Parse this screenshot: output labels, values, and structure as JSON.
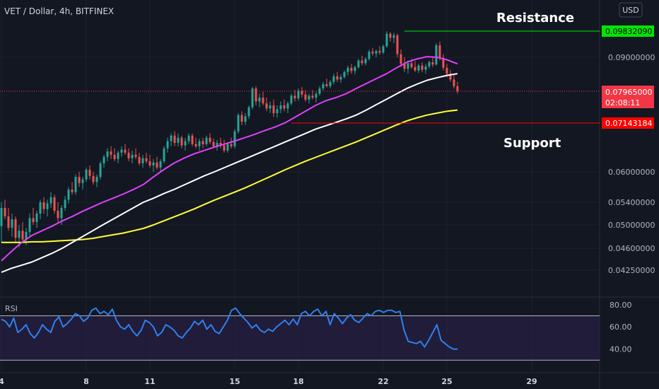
{
  "header": {
    "title": "VET / Dollar, 4h, BITFINEX",
    "currency_button": "USD"
  },
  "annotations": {
    "resistance": "Resistance",
    "support": "Support"
  },
  "badges": {
    "resistance": {
      "value": "0.09832090",
      "color": "#00e600",
      "text_color": "#000000"
    },
    "current": {
      "value": "0.07965000",
      "countdown": "02:08:11",
      "color": "#f23645",
      "text_color": "#ffffff"
    },
    "support": {
      "value": "0.07143184",
      "color": "#ff0000",
      "text_color": "#ffffff"
    }
  },
  "price_axis": {
    "ticks": [
      {
        "label": "0.09000000",
        "value": 0.09
      },
      {
        "label": "0.06000000",
        "value": 0.06
      },
      {
        "label": "0.05400000",
        "value": 0.054
      },
      {
        "label": "0.05000000",
        "value": 0.05
      },
      {
        "label": "0.04600000",
        "value": 0.046
      },
      {
        "label": "0.04250000",
        "value": 0.0425
      }
    ]
  },
  "time_axis": {
    "labels": [
      {
        "label": "4",
        "index": 0
      },
      {
        "label": "8",
        "index": 24
      },
      {
        "label": "11",
        "index": 42
      },
      {
        "label": "15",
        "index": 66
      },
      {
        "label": "18",
        "index": 84
      },
      {
        "label": "22",
        "index": 108
      },
      {
        "label": "25",
        "index": 126
      },
      {
        "label": "29",
        "index": 150
      }
    ]
  },
  "rsi": {
    "label": "RSI",
    "ticks": [
      {
        "label": "80.00",
        "value": 80
      },
      {
        "label": "60.00",
        "value": 60
      },
      {
        "label": "40.00",
        "value": 40
      }
    ],
    "upper_band": 70,
    "lower_band": 30,
    "line_color": "#2f80ed",
    "fill_color": "#2a1f4a"
  },
  "colors": {
    "up": "#26a69a",
    "down": "#ef5350",
    "ema_fast": "#e040fb",
    "ema_mid": "#ffffff",
    "ema_slow": "#ffff33",
    "resistance_line": "#00e600",
    "support_line": "#ff0000",
    "current_line": "#f23645"
  },
  "chart_data": {
    "type": "candlestick",
    "title": "VET / Dollar, 4h, BITFINEX",
    "x_range": [
      0,
      170
    ],
    "candles": [
      [
        0.0498,
        0.054,
        0.047,
        0.053
      ],
      [
        0.053,
        0.0545,
        0.051,
        0.0515
      ],
      [
        0.0515,
        0.053,
        0.049,
        0.0495
      ],
      [
        0.0495,
        0.052,
        0.048,
        0.051
      ],
      [
        0.051,
        0.0515,
        0.047,
        0.0478
      ],
      [
        0.0478,
        0.05,
        0.0462,
        0.049
      ],
      [
        0.049,
        0.0505,
        0.047,
        0.0475
      ],
      [
        0.0475,
        0.0495,
        0.0465,
        0.0488
      ],
      [
        0.0488,
        0.052,
        0.048,
        0.0512
      ],
      [
        0.0512,
        0.053,
        0.05,
        0.0505
      ],
      [
        0.0505,
        0.0525,
        0.0495,
        0.052
      ],
      [
        0.052,
        0.0545,
        0.051,
        0.054
      ],
      [
        0.054,
        0.055,
        0.052,
        0.0528
      ],
      [
        0.0528,
        0.0545,
        0.0515,
        0.0538
      ],
      [
        0.0538,
        0.056,
        0.053,
        0.055
      ],
      [
        0.055,
        0.0555,
        0.052,
        0.0525
      ],
      [
        0.0525,
        0.054,
        0.0505,
        0.0512
      ],
      [
        0.0512,
        0.0535,
        0.05,
        0.053
      ],
      [
        0.053,
        0.0552,
        0.0525,
        0.0545
      ],
      [
        0.0545,
        0.057,
        0.0538,
        0.0565
      ],
      [
        0.0565,
        0.058,
        0.0555,
        0.056
      ],
      [
        0.056,
        0.0595,
        0.0555,
        0.059
      ],
      [
        0.059,
        0.06,
        0.057,
        0.0578
      ],
      [
        0.0578,
        0.059,
        0.0565,
        0.0585
      ],
      [
        0.0585,
        0.061,
        0.058,
        0.0605
      ],
      [
        0.0605,
        0.0615,
        0.0585,
        0.0592
      ],
      [
        0.0592,
        0.06,
        0.0575,
        0.058
      ],
      [
        0.058,
        0.0595,
        0.057,
        0.059
      ],
      [
        0.059,
        0.0625,
        0.0585,
        0.062
      ],
      [
        0.062,
        0.064,
        0.061,
        0.0635
      ],
      [
        0.0635,
        0.0655,
        0.0625,
        0.0648
      ],
      [
        0.0648,
        0.066,
        0.063,
        0.064
      ],
      [
        0.064,
        0.0655,
        0.0625,
        0.063
      ],
      [
        0.063,
        0.065,
        0.062,
        0.0645
      ],
      [
        0.0645,
        0.066,
        0.0635,
        0.0652
      ],
      [
        0.0652,
        0.0665,
        0.064,
        0.0645
      ],
      [
        0.0645,
        0.0655,
        0.0625,
        0.0632
      ],
      [
        0.0632,
        0.065,
        0.062,
        0.064
      ],
      [
        0.064,
        0.0655,
        0.063,
        0.0635
      ],
      [
        0.0635,
        0.0645,
        0.0615,
        0.062
      ],
      [
        0.062,
        0.064,
        0.061,
        0.0632
      ],
      [
        0.0632,
        0.0645,
        0.062,
        0.0625
      ],
      [
        0.0625,
        0.064,
        0.061,
        0.0615
      ],
      [
        0.0615,
        0.063,
        0.06,
        0.0622
      ],
      [
        0.0622,
        0.0635,
        0.0605,
        0.061
      ],
      [
        0.061,
        0.063,
        0.06,
        0.0625
      ],
      [
        0.0625,
        0.066,
        0.062,
        0.0655
      ],
      [
        0.0655,
        0.068,
        0.0645,
        0.0672
      ],
      [
        0.0672,
        0.069,
        0.066,
        0.0685
      ],
      [
        0.0685,
        0.0695,
        0.066,
        0.0668
      ],
      [
        0.0668,
        0.069,
        0.066,
        0.068
      ],
      [
        0.068,
        0.0685,
        0.0655,
        0.0662
      ],
      [
        0.0662,
        0.068,
        0.065,
        0.0672
      ],
      [
        0.0672,
        0.069,
        0.0665,
        0.0685
      ],
      [
        0.0685,
        0.069,
        0.066,
        0.0665
      ],
      [
        0.0665,
        0.068,
        0.0655,
        0.066
      ],
      [
        0.066,
        0.0678,
        0.065,
        0.0672
      ],
      [
        0.0672,
        0.068,
        0.0655,
        0.0665
      ],
      [
        0.0665,
        0.0685,
        0.066,
        0.068
      ],
      [
        0.068,
        0.069,
        0.0665,
        0.067
      ],
      [
        0.067,
        0.0678,
        0.0655,
        0.066
      ],
      [
        0.066,
        0.0675,
        0.065,
        0.0668
      ],
      [
        0.0668,
        0.068,
        0.0655,
        0.0662
      ],
      [
        0.0662,
        0.0675,
        0.0645,
        0.065
      ],
      [
        0.065,
        0.067,
        0.0645,
        0.0665
      ],
      [
        0.0665,
        0.068,
        0.0655,
        0.066
      ],
      [
        0.066,
        0.07,
        0.0655,
        0.0695
      ],
      [
        0.0695,
        0.074,
        0.069,
        0.0735
      ],
      [
        0.0735,
        0.0745,
        0.071,
        0.0718
      ],
      [
        0.0718,
        0.074,
        0.071,
        0.0732
      ],
      [
        0.0732,
        0.076,
        0.0725,
        0.0755
      ],
      [
        0.0755,
        0.081,
        0.075,
        0.0805
      ],
      [
        0.0805,
        0.0812,
        0.076,
        0.077
      ],
      [
        0.077,
        0.079,
        0.0755,
        0.078
      ],
      [
        0.078,
        0.0795,
        0.076,
        0.0765
      ],
      [
        0.0765,
        0.078,
        0.0745,
        0.0752
      ],
      [
        0.0752,
        0.077,
        0.074,
        0.076
      ],
      [
        0.076,
        0.0775,
        0.073,
        0.074
      ],
      [
        0.074,
        0.076,
        0.0728,
        0.075
      ],
      [
        0.075,
        0.077,
        0.074,
        0.076
      ],
      [
        0.076,
        0.0775,
        0.0745,
        0.0752
      ],
      [
        0.0752,
        0.077,
        0.074,
        0.0765
      ],
      [
        0.0765,
        0.079,
        0.076,
        0.0785
      ],
      [
        0.0785,
        0.08,
        0.077,
        0.0778
      ],
      [
        0.0778,
        0.0805,
        0.0772,
        0.0798
      ],
      [
        0.0798,
        0.081,
        0.078,
        0.0788
      ],
      [
        0.0788,
        0.08,
        0.077,
        0.0775
      ],
      [
        0.0775,
        0.079,
        0.0765,
        0.0785
      ],
      [
        0.0785,
        0.08,
        0.0775,
        0.078
      ],
      [
        0.078,
        0.0795,
        0.0768,
        0.079
      ],
      [
        0.079,
        0.0812,
        0.0785,
        0.0805
      ],
      [
        0.0805,
        0.0825,
        0.0798,
        0.0818
      ],
      [
        0.0818,
        0.0835,
        0.0808,
        0.0812
      ],
      [
        0.0812,
        0.083,
        0.0805,
        0.0825
      ],
      [
        0.0825,
        0.085,
        0.0818,
        0.0842
      ],
      [
        0.0842,
        0.0855,
        0.0825,
        0.0832
      ],
      [
        0.0832,
        0.0848,
        0.0822,
        0.084
      ],
      [
        0.084,
        0.086,
        0.0835,
        0.0855
      ],
      [
        0.0855,
        0.0875,
        0.0845,
        0.0868
      ],
      [
        0.0868,
        0.088,
        0.085,
        0.0858
      ],
      [
        0.0858,
        0.0875,
        0.0848,
        0.087
      ],
      [
        0.087,
        0.0895,
        0.0865,
        0.089
      ],
      [
        0.089,
        0.0905,
        0.0875,
        0.0882
      ],
      [
        0.0882,
        0.09,
        0.0875,
        0.0895
      ],
      [
        0.0895,
        0.0925,
        0.089,
        0.0918
      ],
      [
        0.0918,
        0.093,
        0.0905,
        0.0912
      ],
      [
        0.0912,
        0.0925,
        0.09,
        0.092
      ],
      [
        0.092,
        0.0935,
        0.0908,
        0.0915
      ],
      [
        0.0915,
        0.094,
        0.091,
        0.0935
      ],
      [
        0.0935,
        0.0983,
        0.093,
        0.0975
      ],
      [
        0.0975,
        0.098,
        0.095,
        0.0962
      ],
      [
        0.0962,
        0.0978,
        0.0945,
        0.097
      ],
      [
        0.097,
        0.0975,
        0.09,
        0.091
      ],
      [
        0.091,
        0.0925,
        0.087,
        0.088
      ],
      [
        0.088,
        0.09,
        0.0855,
        0.0865
      ],
      [
        0.0865,
        0.089,
        0.085,
        0.0882
      ],
      [
        0.0882,
        0.0895,
        0.0865,
        0.087
      ],
      [
        0.087,
        0.0888,
        0.0855,
        0.086
      ],
      [
        0.086,
        0.088,
        0.0852,
        0.0875
      ],
      [
        0.0875,
        0.0885,
        0.0855,
        0.0862
      ],
      [
        0.0862,
        0.088,
        0.085,
        0.0872
      ],
      [
        0.0872,
        0.089,
        0.0865,
        0.0885
      ],
      [
        0.0885,
        0.09,
        0.087,
        0.0878
      ],
      [
        0.0878,
        0.0945,
        0.0875,
        0.0938
      ],
      [
        0.0938,
        0.095,
        0.089,
        0.0898
      ],
      [
        0.0898,
        0.091,
        0.086,
        0.0868
      ],
      [
        0.0868,
        0.088,
        0.084,
        0.085
      ],
      [
        0.085,
        0.0862,
        0.0825,
        0.0832
      ],
      [
        0.0832,
        0.0845,
        0.0805,
        0.0812
      ],
      [
        0.0812,
        0.0825,
        0.079,
        0.0797
      ]
    ],
    "ema_fast": [
      0.044,
      0.0455,
      0.047,
      0.0482,
      0.049,
      0.0498,
      0.0507,
      0.0515,
      0.0524,
      0.0532,
      0.054,
      0.0548,
      0.0556,
      0.0565,
      0.0575,
      0.059,
      0.0605,
      0.062,
      0.0632,
      0.0642,
      0.065,
      0.0658,
      0.0665,
      0.0672,
      0.068,
      0.0688,
      0.0697,
      0.0705,
      0.0715,
      0.073,
      0.0745,
      0.076,
      0.0772,
      0.078,
      0.079,
      0.0805,
      0.082,
      0.0835,
      0.085,
      0.0868,
      0.0885,
      0.0895,
      0.0902,
      0.09,
      0.0892,
      0.088
    ],
    "ema_mid": [
      0.0422,
      0.0428,
      0.0433,
      0.0438,
      0.0445,
      0.0452,
      0.046,
      0.047,
      0.048,
      0.049,
      0.05,
      0.051,
      0.052,
      0.053,
      0.054,
      0.0548,
      0.0557,
      0.0565,
      0.0574,
      0.0583,
      0.0592,
      0.06,
      0.061,
      0.062,
      0.063,
      0.064,
      0.065,
      0.066,
      0.067,
      0.068,
      0.069,
      0.07,
      0.0708,
      0.0716,
      0.0725,
      0.0735,
      0.0748,
      0.0762,
      0.0776,
      0.079,
      0.0805,
      0.0818,
      0.083,
      0.0838,
      0.0845,
      0.085
    ],
    "ema_slow": [
      0.047,
      0.047,
      0.047,
      0.0471,
      0.0471,
      0.0472,
      0.0473,
      0.0474,
      0.0475,
      0.0477,
      0.048,
      0.0483,
      0.0486,
      0.049,
      0.0494,
      0.05,
      0.0507,
      0.0514,
      0.0521,
      0.0528,
      0.0536,
      0.0544,
      0.0552,
      0.056,
      0.0568,
      0.0577,
      0.0586,
      0.0595,
      0.0605,
      0.0615,
      0.0625,
      0.0634,
      0.0643,
      0.0652,
      0.0661,
      0.067,
      0.068,
      0.069,
      0.07,
      0.071,
      0.072,
      0.0728,
      0.0735,
      0.074,
      0.0745,
      0.0748
    ],
    "rsi": [
      67,
      65,
      60,
      68,
      55,
      58,
      62,
      54,
      50,
      55,
      62,
      58,
      55,
      65,
      69,
      60,
      63,
      67,
      72,
      70,
      65,
      68,
      75,
      77,
      72,
      74,
      71,
      76,
      66,
      60,
      58,
      62,
      56,
      52,
      57,
      66,
      64,
      60,
      52,
      55,
      62,
      60,
      57,
      52,
      50,
      55,
      59,
      65,
      62,
      66,
      58,
      62,
      56,
      54,
      60,
      66,
      75,
      77,
      72,
      68,
      64,
      59,
      62,
      57,
      55,
      58,
      56,
      60,
      63,
      66,
      62,
      67,
      62,
      72,
      74,
      70,
      74,
      76,
      70,
      74,
      62,
      72,
      68,
      63,
      68,
      71,
      66,
      64,
      68,
      72,
      70,
      74,
      75,
      73,
      75,
      75,
      73,
      74,
      57,
      47,
      46,
      45,
      47,
      42,
      48,
      55,
      62,
      48,
      45,
      42,
      40,
      40
    ],
    "rsi_range": [
      20,
      85
    ]
  }
}
